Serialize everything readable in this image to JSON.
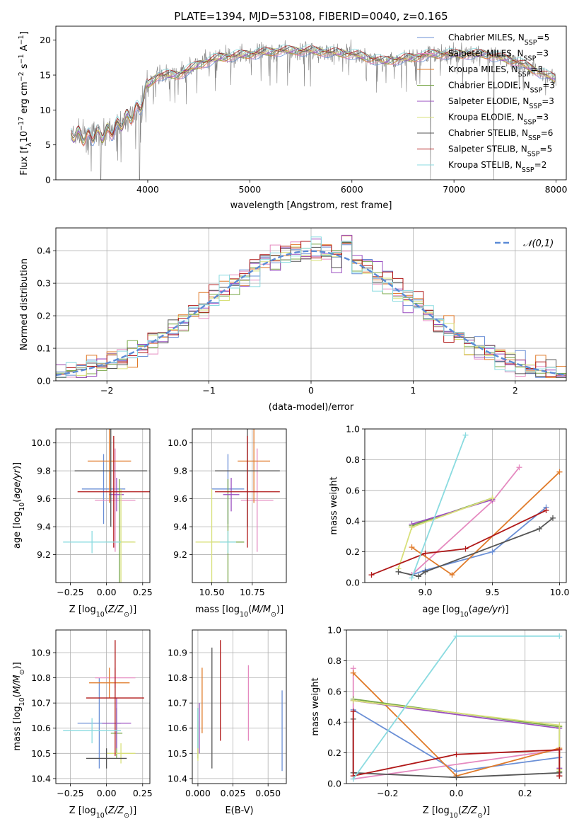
{
  "colors": {
    "Chabrier MILES": "#6a8fd6",
    "Salpeter MILES": "#e58ac0",
    "Kroupa MILES": "#e07b2a",
    "Chabrier ELODIE": "#7aa84a",
    "Salpeter ELODIE": "#9a4fc0",
    "Kroupa ELODIE": "#d8e07a",
    "Chabrier STELIB": "#555555",
    "Salpeter STELIB": "#b01818",
    "Kroupa STELIB": "#8adbe0"
  },
  "chart_data": [
    {
      "id": "spectrum",
      "type": "line",
      "title": "PLATE=1394, MJD=53108, FIBERID=0040, z=0.165",
      "xlabel": "wavelength [Angstrom, rest frame]",
      "ylabel": "Flux [f_λ10^-17 erg cm^-2 s^-1 A^-1]",
      "xlim": [
        3100,
        8100
      ],
      "ylim": [
        0,
        22
      ],
      "xticks": [
        4000,
        5000,
        6000,
        7000,
        8000
      ],
      "yticks": [
        0,
        5,
        10,
        15,
        20
      ],
      "grid": false,
      "legend": "right",
      "legend_entries": [
        {
          "name": "Chabrier MILES, N_SSP=5",
          "key": "Chabrier MILES"
        },
        {
          "name": "Salpeter MILES, N_SSP=3",
          "key": "Salpeter MILES"
        },
        {
          "name": "Kroupa MILES, N_SSP=3",
          "key": "Kroupa MILES"
        },
        {
          "name": "Chabrier ELODIE, N_SSP=3",
          "key": "Chabrier ELODIE"
        },
        {
          "name": "Salpeter ELODIE, N_SSP=3",
          "key": "Salpeter ELODIE"
        },
        {
          "name": "Kroupa ELODIE, N_SSP=3",
          "key": "Kroupa ELODIE"
        },
        {
          "name": "Chabrier STELIB, N_SSP=6",
          "key": "Chabrier STELIB"
        },
        {
          "name": "Salpeter STELIB, N_SSP=5",
          "key": "Salpeter STELIB"
        },
        {
          "name": "Kroupa STELIB, N_SSP=2",
          "key": "Kroupa STELIB"
        }
      ],
      "continuum": {
        "x": [
          3250,
          3400,
          3550,
          3700,
          3850,
          3950,
          4000,
          4100,
          4300,
          4500,
          4700,
          5000,
          5300,
          5600,
          6000,
          6300,
          6600,
          6800,
          7000,
          7300,
          7600,
          7900,
          8000
        ],
        "y": [
          6.5,
          6.2,
          6.5,
          7.5,
          9.5,
          11,
          13.5,
          15,
          15,
          16.5,
          17.5,
          18,
          18.5,
          18.5,
          18,
          17,
          17.5,
          18,
          18,
          18,
          17,
          15,
          14.5
        ]
      },
      "data_dips": [
        {
          "x": 3540,
          "y": 0
        },
        {
          "x": 3920,
          "y": 0
        },
        {
          "x": 6770,
          "y": 0
        },
        {
          "x": 7390,
          "y": 0
        }
      ]
    },
    {
      "id": "residuals",
      "type": "step",
      "xlabel": "(data-model)/error",
      "ylabel": "Normed distribution",
      "xlim": [
        -2.5,
        2.5
      ],
      "ylim": [
        0,
        0.47
      ],
      "xticks": [
        -2,
        -1,
        0,
        1,
        2
      ],
      "yticks": [
        0.0,
        0.1,
        0.2,
        0.3,
        0.4
      ],
      "grid": true,
      "legend": "top-right",
      "reference_curve": {
        "label": "𝒩(0,1)",
        "mean": 0,
        "sigma": 1
      }
    },
    {
      "id": "age_vs_Z",
      "type": "errorbar",
      "xlabel": "Z [log10(Z/Z⊙)]",
      "ylabel": "age [log10(age/yr)]",
      "xlim": [
        -0.35,
        0.3
      ],
      "ylim": [
        9.0,
        10.1
      ],
      "xticks": [
        -0.25,
        0.0,
        0.25
      ],
      "xtick_labels": [
        "−0.25",
        "0.00",
        "0.25"
      ],
      "yticks": [
        9.2,
        9.4,
        9.6,
        9.8,
        10.0
      ],
      "grid": true,
      "points": [
        {
          "key": "Chabrier MILES",
          "x": -0.02,
          "xerr": 0.15,
          "y": 9.67,
          "yerr": 0.25
        },
        {
          "key": "Salpeter MILES",
          "x": 0.06,
          "xerr": 0.14,
          "y": 9.59,
          "yerr": 0.37
        },
        {
          "key": "Kroupa MILES",
          "x": 0.02,
          "xerr": 0.15,
          "y": 9.87,
          "yerr": 0.3
        },
        {
          "key": "Chabrier ELODIE",
          "x": 0.09,
          "xerr": 0.1,
          "y": 9.29,
          "yerr": 0.45
        },
        {
          "key": "Salpeter ELODIE",
          "x": 0.07,
          "xerr": 0.05,
          "y": 9.63,
          "yerr": 0.12
        },
        {
          "key": "Kroupa ELODIE",
          "x": 0.1,
          "xerr": 0.1,
          "y": 9.29,
          "yerr": 0.38
        },
        {
          "key": "Chabrier STELIB",
          "x": 0.03,
          "xerr": 0.25,
          "y": 9.8,
          "yerr": 0.4
        },
        {
          "key": "Salpeter STELIB",
          "x": 0.05,
          "xerr": 0.25,
          "y": 9.65,
          "yerr": 0.4
        },
        {
          "key": "Kroupa STELIB",
          "x": -0.1,
          "xerr": 0.2,
          "y": 9.29,
          "yerr": 0.08
        }
      ]
    },
    {
      "id": "age_vs_mass",
      "type": "errorbar",
      "xlabel": "mass [log10(M/M⊙)]",
      "ylabel": "",
      "xlim": [
        10.38,
        10.96
      ],
      "ylim": [
        9.0,
        10.1
      ],
      "xticks": [
        10.5,
        10.75
      ],
      "xtick_labels": [
        "10.50",
        "10.75"
      ],
      "yticks": [
        9.2,
        9.4,
        9.6,
        9.8,
        10.0
      ],
      "grid": true,
      "points": [
        {
          "key": "Chabrier MILES",
          "x": 10.6,
          "xerr": 0.1,
          "y": 9.67,
          "yerr": 0.25
        },
        {
          "key": "Salpeter MILES",
          "x": 10.78,
          "xerr": 0.1,
          "y": 9.59,
          "yerr": 0.37
        },
        {
          "key": "Kroupa MILES",
          "x": 10.76,
          "xerr": 0.1,
          "y": 9.87,
          "yerr": 0.3
        },
        {
          "key": "Chabrier ELODIE",
          "x": 10.6,
          "xerr": 0.1,
          "y": 9.29,
          "yerr": 0.45
        },
        {
          "key": "Salpeter ELODIE",
          "x": 10.62,
          "xerr": 0.05,
          "y": 9.63,
          "yerr": 0.12
        },
        {
          "key": "Kroupa ELODIE",
          "x": 10.5,
          "xerr": 0.1,
          "y": 9.29,
          "yerr": 0.38
        },
        {
          "key": "Chabrier STELIB",
          "x": 10.72,
          "xerr": 0.2,
          "y": 9.8,
          "yerr": 0.4
        },
        {
          "key": "Salpeter STELIB",
          "x": 10.72,
          "xerr": 0.2,
          "y": 9.65,
          "yerr": 0.4
        },
        {
          "key": "Kroupa STELIB",
          "x": 10.6,
          "xerr": 0.05,
          "y": 9.29,
          "yerr": 0.08
        }
      ]
    },
    {
      "id": "weight_vs_age",
      "type": "line",
      "xlabel": "age [log10(age/yr)]",
      "ylabel": "mass weight",
      "xlim": [
        8.55,
        10.05
      ],
      "ylim": [
        0,
        1
      ],
      "xticks": [
        9.0,
        9.5,
        10.0
      ],
      "xtick_labels": [
        "9.0",
        "9.5",
        "10.0"
      ],
      "yticks": [
        0.0,
        0.2,
        0.4,
        0.6,
        0.8,
        1.0
      ],
      "grid": true,
      "series": [
        {
          "key": "Chabrier MILES",
          "x": [
            8.9,
            9.0,
            9.5,
            9.9
          ],
          "y": [
            0.05,
            0.08,
            0.2,
            0.49
          ]
        },
        {
          "key": "Salpeter MILES",
          "x": [
            8.9,
            9.5,
            9.7
          ],
          "y": [
            0.05,
            0.53,
            0.75
          ]
        },
        {
          "key": "Kroupa MILES",
          "x": [
            8.9,
            9.2,
            10.0
          ],
          "y": [
            0.23,
            0.05,
            0.72
          ]
        },
        {
          "key": "Chabrier ELODIE",
          "x": [
            8.9,
            9.5
          ],
          "y": [
            0.37,
            0.55
          ]
        },
        {
          "key": "Salpeter ELODIE",
          "x": [
            8.9,
            9.5
          ],
          "y": [
            0.38,
            0.54
          ]
        },
        {
          "key": "Kroupa ELODIE",
          "x": [
            8.8,
            8.9,
            9.5
          ],
          "y": [
            0.09,
            0.36,
            0.55
          ]
        },
        {
          "key": "Chabrier STELIB",
          "x": [
            8.8,
            8.95,
            9.0,
            9.85,
            9.95
          ],
          "y": [
            0.07,
            0.04,
            0.07,
            0.35,
            0.42
          ]
        },
        {
          "key": "Salpeter STELIB",
          "x": [
            8.6,
            9.0,
            9.3,
            9.9
          ],
          "y": [
            0.05,
            0.19,
            0.22,
            0.47
          ]
        },
        {
          "key": "Kroupa STELIB",
          "x": [
            8.9,
            9.3
          ],
          "y": [
            0.03,
            0.96
          ]
        }
      ]
    },
    {
      "id": "mass_vs_Z",
      "type": "errorbar",
      "xlabel": "Z [log10(Z/Z⊙)]",
      "ylabel": "mass [log10(M/M⊙)]",
      "xlim": [
        -0.35,
        0.3
      ],
      "ylim": [
        10.38,
        10.99
      ],
      "xticks": [
        -0.25,
        0.0,
        0.25
      ],
      "xtick_labels": [
        "−0.25",
        "0.00",
        "0.25"
      ],
      "yticks": [
        10.4,
        10.5,
        10.6,
        10.7,
        10.8,
        10.9
      ],
      "grid": true,
      "points": [
        {
          "key": "Chabrier MILES",
          "x": -0.05,
          "xerr": 0.15,
          "y": 10.62,
          "yerr": 0.18
        },
        {
          "key": "Salpeter MILES",
          "x": 0.06,
          "xerr": 0.14,
          "y": 10.8,
          "yerr": 0.04
        },
        {
          "key": "Kroupa MILES",
          "x": 0.02,
          "xerr": 0.14,
          "y": 10.78,
          "yerr": 0.06
        },
        {
          "key": "Chabrier ELODIE",
          "x": 0.07,
          "xerr": 0.04,
          "y": 10.58,
          "yerr": 0.1
        },
        {
          "key": "Salpeter ELODIE",
          "x": 0.07,
          "xerr": 0.1,
          "y": 10.62,
          "yerr": 0.1
        },
        {
          "key": "Kroupa ELODIE",
          "x": 0.1,
          "xerr": 0.1,
          "y": 10.5,
          "yerr": 0.04
        },
        {
          "key": "Chabrier STELIB",
          "x": 0.0,
          "xerr": 0.14,
          "y": 10.48,
          "yerr": 0.04
        },
        {
          "key": "Salpeter STELIB",
          "x": 0.06,
          "xerr": 0.2,
          "y": 10.72,
          "yerr": 0.23
        },
        {
          "key": "Kroupa STELIB",
          "x": -0.1,
          "xerr": 0.2,
          "y": 10.59,
          "yerr": 0.05
        }
      ]
    },
    {
      "id": "mass_vs_ebv",
      "type": "errorbar",
      "xlabel": "E(B-V)",
      "ylabel": "",
      "xlim": [
        -0.004,
        0.063
      ],
      "ylim": [
        10.38,
        10.99
      ],
      "xticks": [
        0.0,
        0.025,
        0.05
      ],
      "xtick_labels": [
        "0.000",
        "0.025",
        "0.050"
      ],
      "yticks": [
        10.4,
        10.5,
        10.6,
        10.7,
        10.8,
        10.9
      ],
      "grid": true,
      "points": [
        {
          "key": "Chabrier MILES",
          "x": 0.06,
          "xerr": 0,
          "y": 10.59,
          "yerr": 0.16
        },
        {
          "key": "Salpeter MILES",
          "x": 0.036,
          "xerr": 0,
          "y": 10.7,
          "yerr": 0.15
        },
        {
          "key": "Kroupa MILES",
          "x": 0.003,
          "xerr": 0,
          "y": 10.71,
          "yerr": 0.13
        },
        {
          "key": "Chabrier ELODIE",
          "x": 0.0,
          "xerr": 0,
          "y": 10.58,
          "yerr": 0.1
        },
        {
          "key": "Salpeter ELODIE",
          "x": 0.001,
          "xerr": 0,
          "y": 10.6,
          "yerr": 0.1
        },
        {
          "key": "Kroupa ELODIE",
          "x": 0.0,
          "xerr": 0,
          "y": 10.55,
          "yerr": 0.08
        },
        {
          "key": "Chabrier STELIB",
          "x": 0.01,
          "xerr": 0,
          "y": 10.68,
          "yerr": 0.24
        },
        {
          "key": "Salpeter STELIB",
          "x": 0.016,
          "xerr": 0,
          "y": 10.75,
          "yerr": 0.2
        },
        {
          "key": "Kroupa STELIB",
          "x": 0.0,
          "xerr": 0,
          "y": 10.6,
          "yerr": 0.08
        }
      ]
    },
    {
      "id": "weight_vs_Z",
      "type": "line",
      "xlabel": "Z [log10(Z/Z⊙)]",
      "ylabel": "mass weight",
      "xlim": [
        -0.32,
        0.32
      ],
      "ylim": [
        0,
        1
      ],
      "xticks": [
        -0.2,
        0.0,
        0.2
      ],
      "xtick_labels": [
        "−0.2",
        "0.0",
        "0.2"
      ],
      "yticks": [
        0.0,
        0.2,
        0.4,
        0.6,
        0.8,
        1.0
      ],
      "grid": true,
      "series": [
        {
          "key": "Chabrier MILES",
          "x": [
            -0.3,
            0.0,
            0.3,
            0.3
          ],
          "y": [
            0.48,
            0.08,
            0.17,
            0.05
          ]
        },
        {
          "key": "Salpeter MILES",
          "x": [
            -0.3,
            -0.3,
            0.3,
            0.3
          ],
          "y": [
            0.75,
            0.03,
            0.22,
            0.05
          ]
        },
        {
          "key": "Kroupa MILES",
          "x": [
            -0.3,
            0.0,
            0.3,
            0.3
          ],
          "y": [
            0.72,
            0.05,
            0.23,
            0.05
          ]
        },
        {
          "key": "Chabrier ELODIE",
          "x": [
            -0.3,
            0.3,
            0.3
          ],
          "y": [
            0.55,
            0.37,
            0.08
          ]
        },
        {
          "key": "Salpeter ELODIE",
          "x": [
            -0.3,
            0.3,
            0.3
          ],
          "y": [
            0.54,
            0.36,
            0.1
          ]
        },
        {
          "key": "Kroupa ELODIE",
          "x": [
            -0.3,
            0.3,
            0.3
          ],
          "y": [
            0.54,
            0.38,
            0.09
          ]
        },
        {
          "key": "Chabrier STELIB",
          "x": [
            -0.3,
            -0.3,
            0.0,
            0.3,
            0.3
          ],
          "y": [
            0.42,
            0.07,
            0.04,
            0.07,
            0.05
          ]
        },
        {
          "key": "Salpeter STELIB",
          "x": [
            -0.3,
            -0.3,
            0.0,
            0.3,
            0.3
          ],
          "y": [
            0.47,
            0.05,
            0.19,
            0.22,
            0.05
          ]
        },
        {
          "key": "Kroupa STELIB",
          "x": [
            -0.3,
            0.0,
            0.3
          ],
          "y": [
            0.03,
            0.96,
            0.96
          ]
        }
      ]
    }
  ]
}
